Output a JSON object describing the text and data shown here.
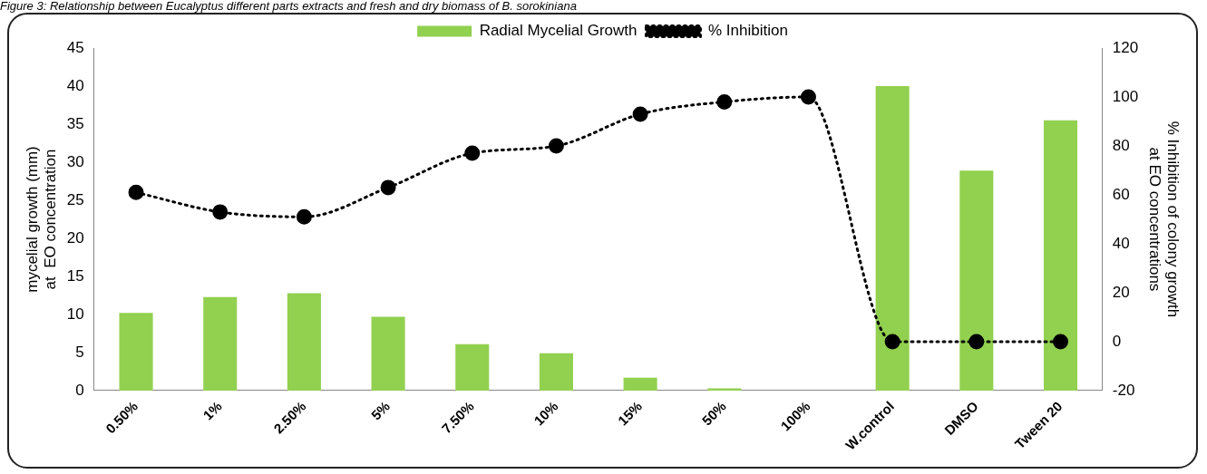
{
  "chart_data": {
    "type": "bar",
    "title": "Figure 3: Relationship between Eucalyptus different parts extracts and fresh and dry biomass of B. sorokiniana",
    "categories": [
      "0.50%",
      "1%",
      "2.50%",
      "5%",
      "7.50%",
      "10%",
      "15%",
      "50%",
      "100%",
      "W.control",
      "DMSO",
      "Tween 20"
    ],
    "series": [
      {
        "name": "Radial Mycelial Growth",
        "color": "#92d050",
        "values": [
          10.2,
          12.3,
          12.8,
          9.7,
          6.1,
          4.9,
          1.7,
          0.3,
          0,
          40,
          28.9,
          35.5
        ]
      },
      {
        "name": "% Inhibition",
        "type": "line",
        "axis": "y2",
        "color": "#000000",
        "marker": "circle",
        "line_style": "dotted",
        "values": [
          61,
          53,
          51,
          63,
          77,
          80,
          93,
          98,
          100,
          0,
          0,
          0
        ]
      }
    ],
    "ylabel": "mycelial growth (mm)\nat  EO concentration",
    "y2label": "% Inhibition of colony growth\nat EO concentrations",
    "ylim": [
      0,
      45
    ],
    "yticks": [
      0,
      5,
      10,
      15,
      20,
      25,
      30,
      35,
      40,
      45
    ],
    "y2lim": [
      -20,
      120
    ],
    "y2ticks": [
      -20,
      0,
      20,
      40,
      60,
      80,
      100,
      120
    ],
    "grid": false,
    "legend": "top"
  }
}
